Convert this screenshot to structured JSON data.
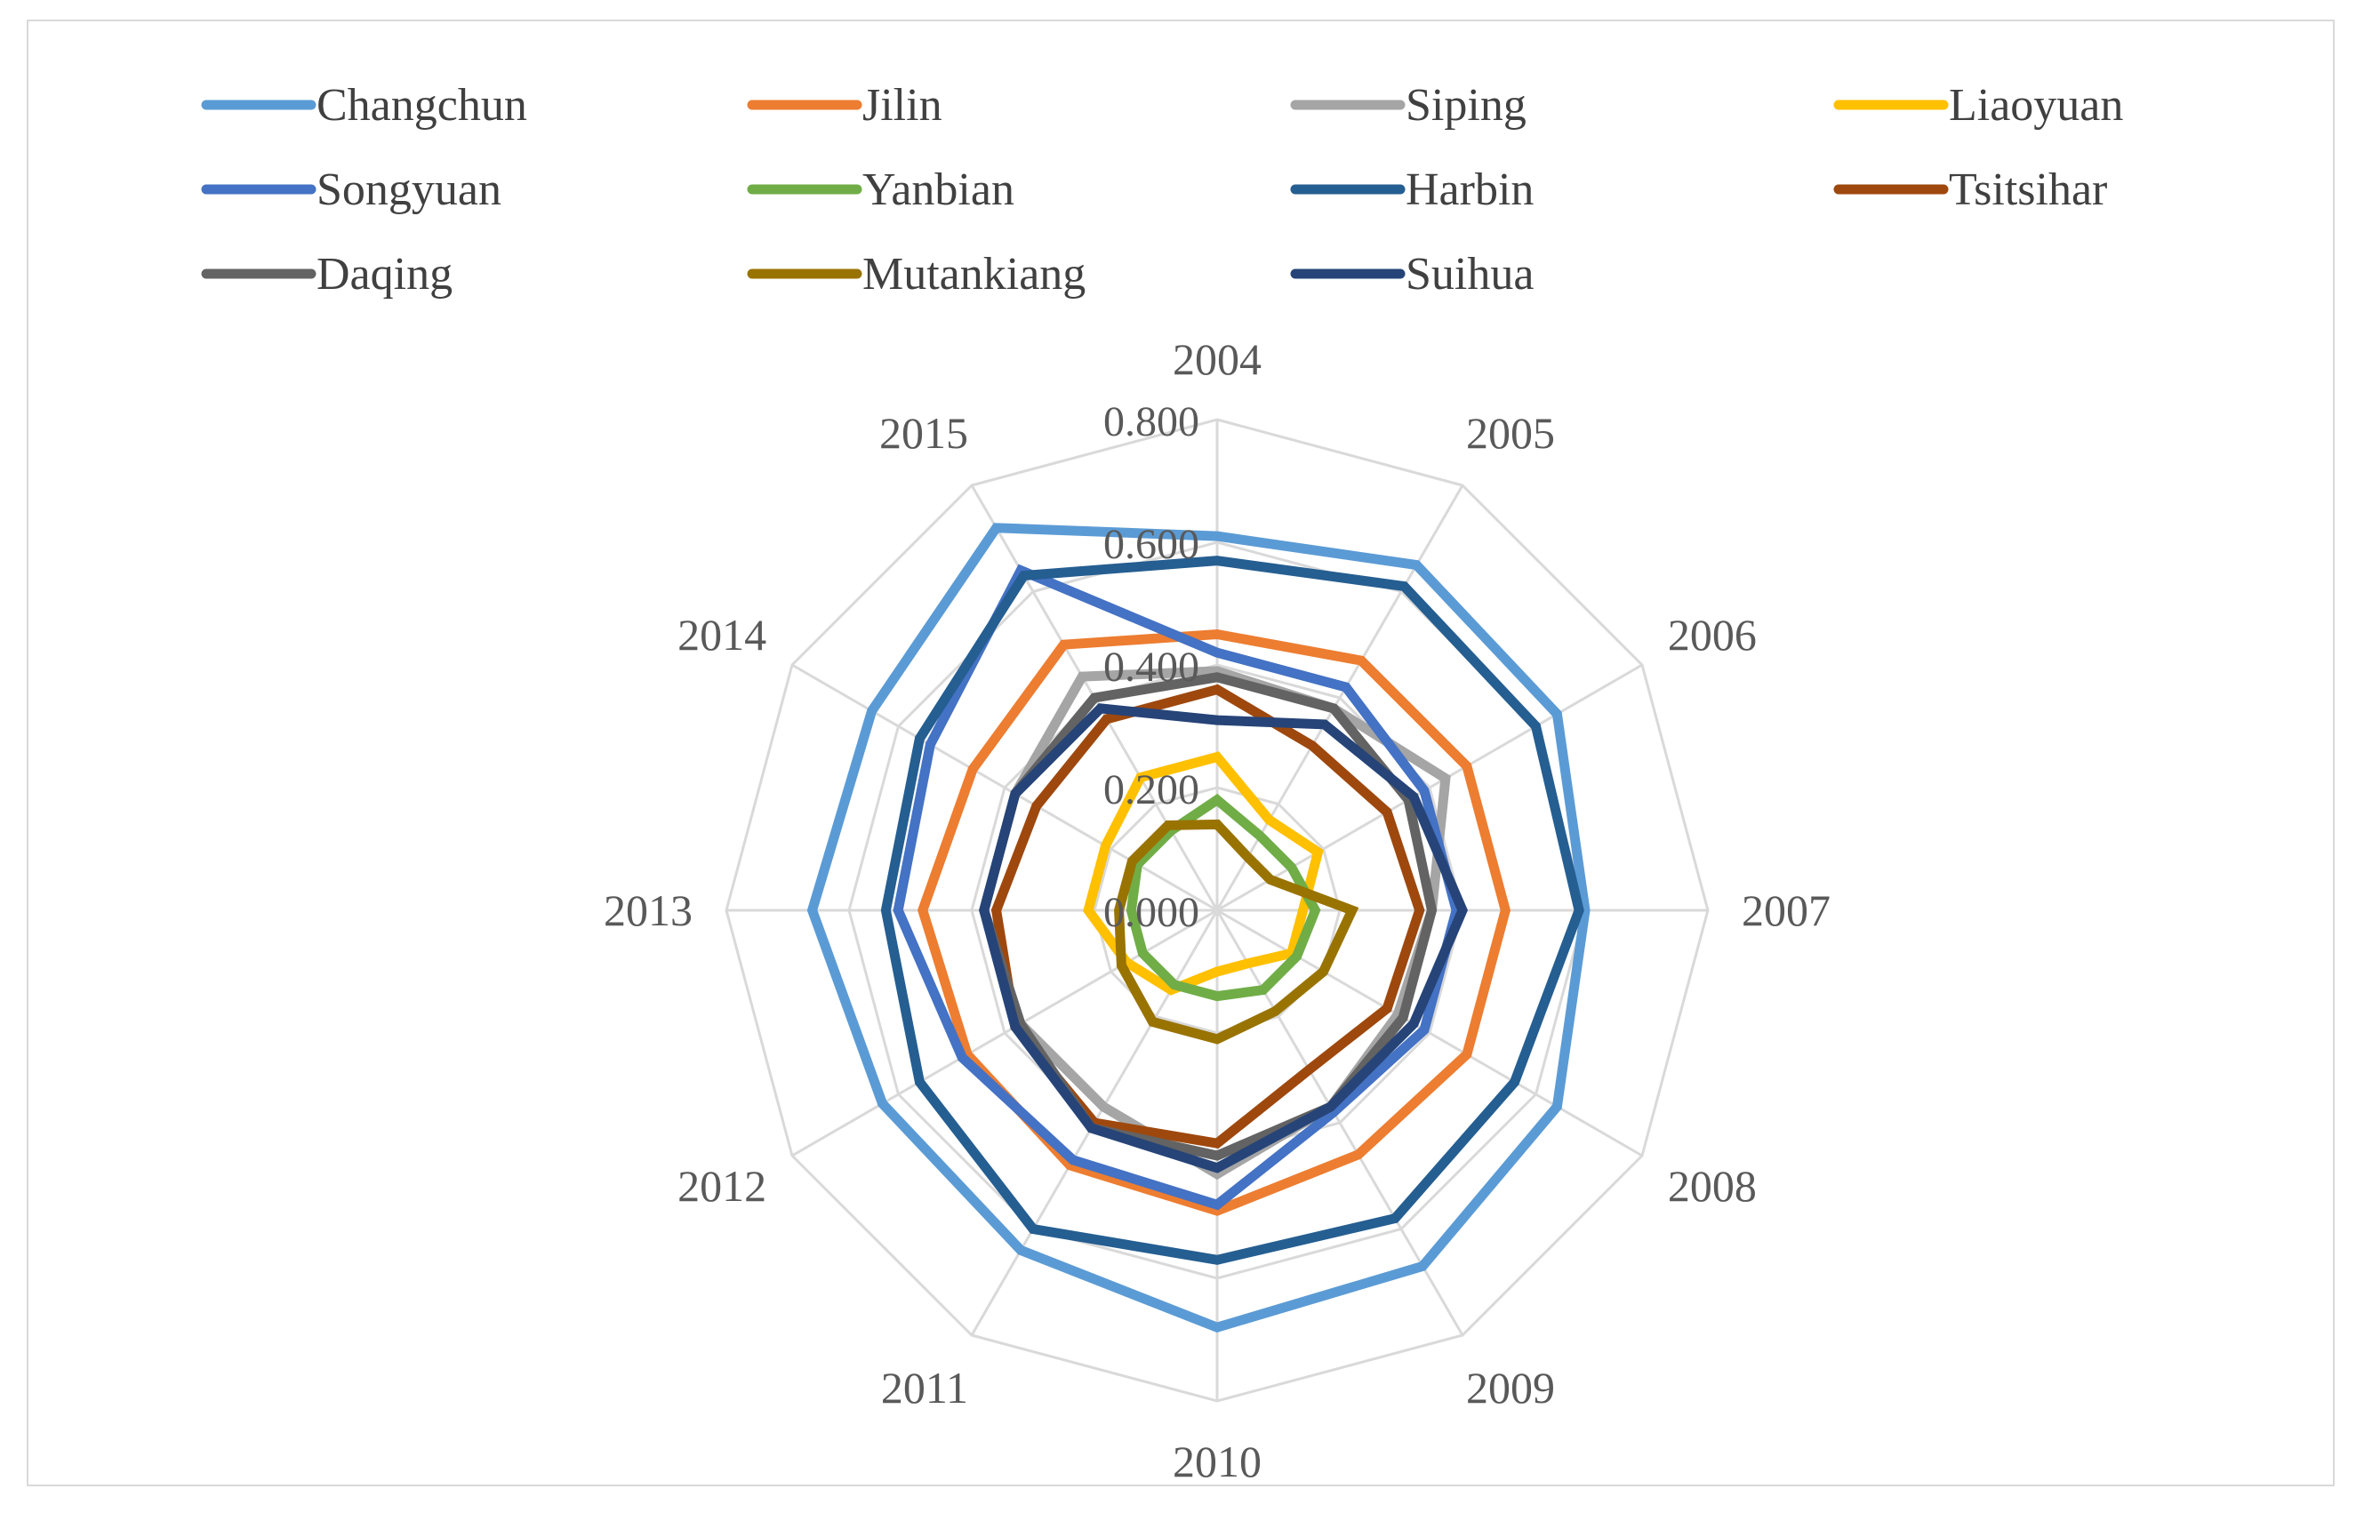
{
  "chart_data": {
    "type": "radar",
    "categories": [
      "2004",
      "2005",
      "2006",
      "2007",
      "2008",
      "2009",
      "2010",
      "2011",
      "2012",
      "2013",
      "2014",
      "2015"
    ],
    "rlim": [
      0,
      0.8
    ],
    "ticks": [
      "0.000",
      "0.200",
      "0.400",
      "0.600",
      "0.800"
    ],
    "tick_values": [
      0,
      0.2,
      0.4,
      0.6,
      0.8
    ],
    "legend_position": "top",
    "grid": true,
    "series": [
      {
        "name": "Changchun",
        "color": "#5B9BD5",
        "values": [
          0.61,
          0.65,
          0.64,
          0.6,
          0.64,
          0.67,
          0.68,
          0.64,
          0.63,
          0.66,
          0.65,
          0.72
        ]
      },
      {
        "name": "Jilin",
        "color": "#ED7D31",
        "values": [
          0.45,
          0.47,
          0.47,
          0.47,
          0.47,
          0.46,
          0.49,
          0.48,
          0.47,
          0.48,
          0.46,
          0.5
        ]
      },
      {
        "name": "Siping",
        "color": "#A5A5A5",
        "values": [
          0.39,
          0.38,
          0.43,
          0.35,
          0.34,
          0.37,
          0.43,
          0.37,
          0.37,
          0.38,
          0.38,
          0.44
        ]
      },
      {
        "name": "Liaoyuan",
        "color": "#FFC000",
        "values": [
          0.25,
          0.17,
          0.19,
          0.14,
          0.14,
          0.1,
          0.1,
          0.15,
          0.17,
          0.21,
          0.21,
          0.25
        ]
      },
      {
        "name": "Songyuan",
        "color": "#4472C4",
        "values": [
          0.42,
          0.42,
          0.39,
          0.39,
          0.39,
          0.38,
          0.48,
          0.47,
          0.48,
          0.52,
          0.54,
          0.64
        ]
      },
      {
        "name": "Yanbian",
        "color": "#70AD47",
        "values": [
          0.18,
          0.14,
          0.14,
          0.16,
          0.15,
          0.15,
          0.14,
          0.14,
          0.14,
          0.14,
          0.15,
          0.15
        ]
      },
      {
        "name": "Harbin",
        "color": "#255E91",
        "values": [
          0.57,
          0.61,
          0.6,
          0.59,
          0.56,
          0.58,
          0.57,
          0.6,
          0.56,
          0.54,
          0.56,
          0.63
        ]
      },
      {
        "name": "Tsitsihar",
        "color": "#9E480E",
        "values": [
          0.36,
          0.31,
          0.32,
          0.33,
          0.32,
          0.3,
          0.38,
          0.4,
          0.38,
          0.36,
          0.34,
          0.36
        ]
      },
      {
        "name": "Daqing",
        "color": "#636363",
        "values": [
          0.38,
          0.38,
          0.36,
          0.35,
          0.35,
          0.37,
          0.4,
          0.41,
          0.37,
          0.38,
          0.38,
          0.4
        ]
      },
      {
        "name": "Mutankiang",
        "color": "#997300",
        "values": [
          0.14,
          0.1,
          0.1,
          0.22,
          0.2,
          0.19,
          0.21,
          0.21,
          0.18,
          0.16,
          0.16,
          0.16
        ]
      },
      {
        "name": "Suihua",
        "color": "#264478",
        "values": [
          0.31,
          0.35,
          0.37,
          0.4,
          0.37,
          0.37,
          0.42,
          0.41,
          0.38,
          0.38,
          0.38,
          0.38
        ]
      }
    ]
  }
}
